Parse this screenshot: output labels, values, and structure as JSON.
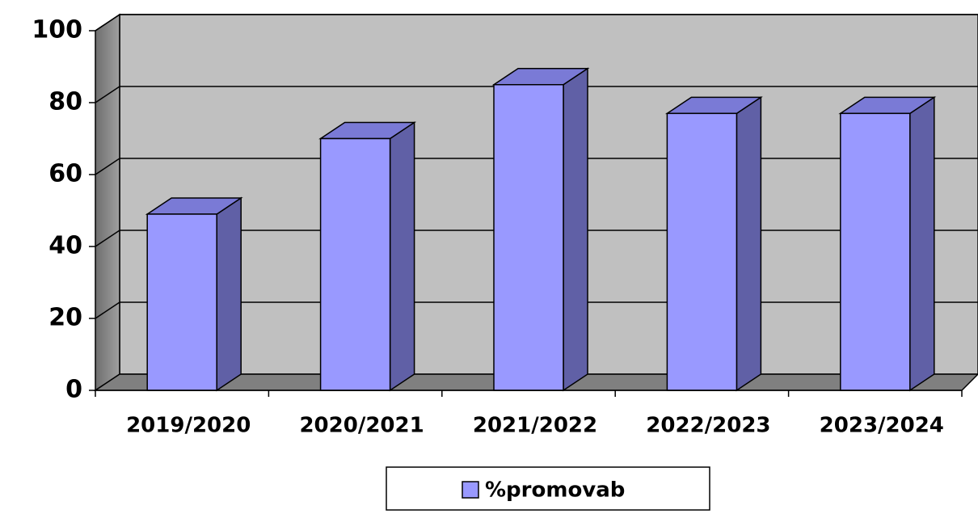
{
  "chart_data": {
    "type": "bar",
    "categories": [
      "2019/2020",
      "2020/2021",
      "2021/2022",
      "2022/2023",
      "2023/2024"
    ],
    "series": [
      {
        "name": "%promovab",
        "color": "#9999ff",
        "values": [
          49,
          70,
          85,
          77,
          77
        ]
      }
    ],
    "ylim": [
      0,
      100
    ],
    "yticks": [
      0,
      20,
      40,
      60,
      80,
      100
    ],
    "grid": true,
    "legend": "bottom"
  }
}
